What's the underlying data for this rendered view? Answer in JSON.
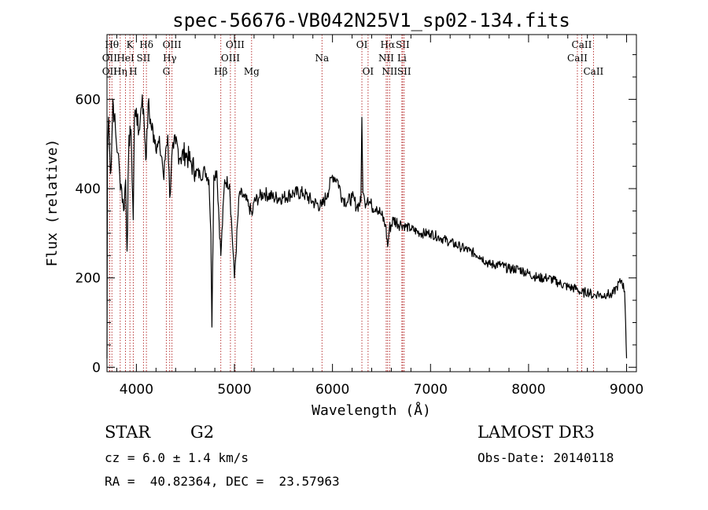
{
  "colors": {
    "spectrum": "#000000",
    "lines": "#b22222",
    "axes": "#000000"
  },
  "chart_data": {
    "type": "line",
    "title": "spec-56676-VB042N25V1_sp02-134.fits",
    "xlabel": "Wavelength (Å)",
    "ylabel": "Flux (relative)",
    "xlim": [
      3700,
      9100
    ],
    "ylim": [
      -10,
      745
    ],
    "x_ticks": [
      4000,
      5000,
      6000,
      7000,
      8000,
      9000
    ],
    "x_tick_labels": [
      "4000",
      "5000",
      "6000",
      "7000",
      "8000",
      "9000"
    ],
    "y_ticks": [
      0,
      200,
      400,
      600
    ],
    "y_tick_labels": [
      "0",
      "200",
      "400",
      "600"
    ],
    "grid": false,
    "series": [
      {
        "name": "flux",
        "x": [
          3700,
          3705,
          3715,
          3725,
          3730,
          3740,
          3750,
          3760,
          3775,
          3790,
          3810,
          3830,
          3850,
          3870,
          3890,
          3905,
          3920,
          3935,
          3950,
          3968,
          3980,
          4000,
          4020,
          4040,
          4060,
          4080,
          4101,
          4120,
          4150,
          4180,
          4210,
          4240,
          4260,
          4280,
          4300,
          4320,
          4340,
          4360,
          4380,
          4400,
          4450,
          4500,
          4550,
          4600,
          4650,
          4700,
          4740,
          4760,
          4770,
          4790,
          4820,
          4861,
          4900,
          4950,
          5000,
          5050,
          5100,
          5150,
          5180,
          5200,
          5250,
          5300,
          5400,
          5500,
          5600,
          5700,
          5800,
          5890,
          5950,
          6000,
          6050,
          6100,
          6150,
          6200,
          6250,
          6290,
          6300,
          6310,
          6330,
          6360,
          6400,
          6450,
          6500,
          6540,
          6563,
          6580,
          6620,
          6700,
          6800,
          6900,
          7000,
          7100,
          7200,
          7300,
          7400,
          7500,
          7600,
          7700,
          7800,
          7900,
          8000,
          8100,
          8200,
          8300,
          8400,
          8500,
          8542,
          8600,
          8662,
          8700,
          8750,
          8800,
          8850,
          8900,
          8950,
          8980,
          8990,
          9000
        ],
        "values": [
          20,
          480,
          560,
          500,
          470,
          440,
          510,
          600,
          560,
          520,
          480,
          430,
          400,
          350,
          420,
          260,
          470,
          540,
          490,
          330,
          560,
          580,
          520,
          560,
          610,
          540,
          470,
          590,
          540,
          520,
          500,
          490,
          470,
          420,
          490,
          520,
          380,
          470,
          490,
          500,
          470,
          480,
          460,
          440,
          430,
          440,
          420,
          300,
          90,
          430,
          440,
          250,
          420,
          410,
          200,
          390,
          380,
          360,
          340,
          370,
          380,
          390,
          380,
          380,
          390,
          390,
          370,
          360,
          390,
          430,
          420,
          380,
          370,
          380,
          360,
          370,
          560,
          390,
          370,
          380,
          360,
          360,
          340,
          320,
          270,
          310,
          330,
          320,
          310,
          300,
          300,
          290,
          280,
          270,
          260,
          250,
          230,
          230,
          220,
          220,
          210,
          200,
          200,
          190,
          180,
          175,
          165,
          170,
          160,
          165,
          160,
          165,
          160,
          180,
          195,
          170,
          100,
          20
        ]
      }
    ],
    "spectral_lines": [
      {
        "name": "Hθ",
        "wavelength": 3750,
        "row": 1
      },
      {
        "name": "OII",
        "wavelength": 3727,
        "row": 2
      },
      {
        "name": "OII",
        "wavelength": 3727,
        "row": 3
      },
      {
        "name": "Hη",
        "wavelength": 3835,
        "row": 3
      },
      {
        "name": "HeI",
        "wavelength": 3889,
        "row": 2
      },
      {
        "name": "K",
        "wavelength": 3934,
        "row": 1
      },
      {
        "name": "SII",
        "wavelength": 4072,
        "row": 2
      },
      {
        "name": "H",
        "wavelength": 3968,
        "row": 3
      },
      {
        "name": "Hδ",
        "wavelength": 4102,
        "row": 1
      },
      {
        "name": "OIII",
        "wavelength": 4363,
        "row": 1
      },
      {
        "name": "Hγ",
        "wavelength": 4340,
        "row": 2
      },
      {
        "name": "G",
        "wavelength": 4305,
        "row": 3
      },
      {
        "name": "Hβ",
        "wavelength": 4861,
        "row": 3
      },
      {
        "name": "OIII",
        "wavelength": 4959,
        "row": 2
      },
      {
        "name": "OIII",
        "wavelength": 5007,
        "row": 1
      },
      {
        "name": "Mg",
        "wavelength": 5175,
        "row": 3
      },
      {
        "name": "Na",
        "wavelength": 5893,
        "row": 2
      },
      {
        "name": "OI",
        "wavelength": 6300,
        "row": 1
      },
      {
        "name": "OI",
        "wavelength": 6363,
        "row": 3
      },
      {
        "name": "Hα",
        "wavelength": 6563,
        "row": 1
      },
      {
        "name": "NII",
        "wavelength": 6548,
        "row": 2
      },
      {
        "name": "NII",
        "wavelength": 6583,
        "row": 3
      },
      {
        "name": "SII",
        "wavelength": 6716,
        "row": 1
      },
      {
        "name": "Li",
        "wavelength": 6708,
        "row": 2
      },
      {
        "name": "SII",
        "wavelength": 6731,
        "row": 3
      },
      {
        "name": "CaII",
        "wavelength": 8542,
        "row": 1
      },
      {
        "name": "CaII",
        "wavelength": 8498,
        "row": 2
      },
      {
        "name": "CaII",
        "wavelength": 8662,
        "row": 3
      }
    ]
  },
  "footer": {
    "object_class": "STAR",
    "subclass": "G2",
    "cz": "cz = 6.0 ± 1.4 km/s",
    "coords": "RA =  40.82364, DEC =  23.57963",
    "survey": "LAMOST DR3",
    "obs_date": "Obs-Date: 20140118"
  }
}
